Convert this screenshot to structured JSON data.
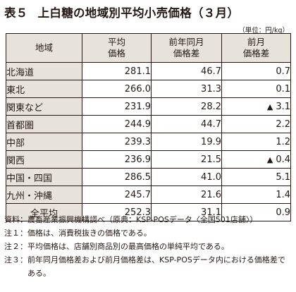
{
  "title": {
    "number": "表５",
    "text": "上白糖の地域別平均小売価格（３月）"
  },
  "unit": "（単位：円/kg）",
  "table": {
    "headers": {
      "region": "地域",
      "price_line1": "平均",
      "price_line2": "価格",
      "yoy_line1": "前年同月",
      "yoy_line2": "価格差",
      "mom_line1": "前月",
      "mom_line2": "価格差"
    },
    "rows": [
      {
        "region": "北海道",
        "price": "281.1",
        "yoy": "46.7",
        "mom": "0.7",
        "mom_down": false
      },
      {
        "region": "東北",
        "price": "266.0",
        "yoy": "31.3",
        "mom": "0.1",
        "mom_down": false
      },
      {
        "region": "関東など",
        "price": "231.9",
        "yoy": "28.2",
        "mom": "3.1",
        "mom_down": true
      },
      {
        "region": "首都圏",
        "price": "244.9",
        "yoy": "44.7",
        "mom": "2.2",
        "mom_down": false
      },
      {
        "region": "中部",
        "price": "239.3",
        "yoy": "19.9",
        "mom": "1.2",
        "mom_down": false
      },
      {
        "region": "関西",
        "price": "236.9",
        "yoy": "21.5",
        "mom": "0.4",
        "mom_down": true
      },
      {
        "region": "中国・四国",
        "price": "286.5",
        "yoy": "41.0",
        "mom": "5.1",
        "mom_down": false
      },
      {
        "region": "九州・沖縄",
        "price": "245.7",
        "yoy": "21.6",
        "mom": "1.4",
        "mom_down": false
      },
      {
        "region": "全平均",
        "price": "252.3",
        "yoy": "31.1",
        "mom": "0.9",
        "mom_down": false
      }
    ],
    "down_marker": "▲"
  },
  "notes": [
    {
      "label": "資料：",
      "text": "農畜産業振興機構調べ（原典：KSP-POSデータ〈全国501店舗〉）"
    },
    {
      "label": "注１：",
      "text": "価格は、消費税抜きの価格である。"
    },
    {
      "label": "注２：",
      "text": "平均価格は、店舗別商品別の最高価格の単純平均である。"
    },
    {
      "label": "注３：",
      "text": "前年同月価格差および前月価格差は、KSP-POSデータ内における価格差である。"
    }
  ]
}
